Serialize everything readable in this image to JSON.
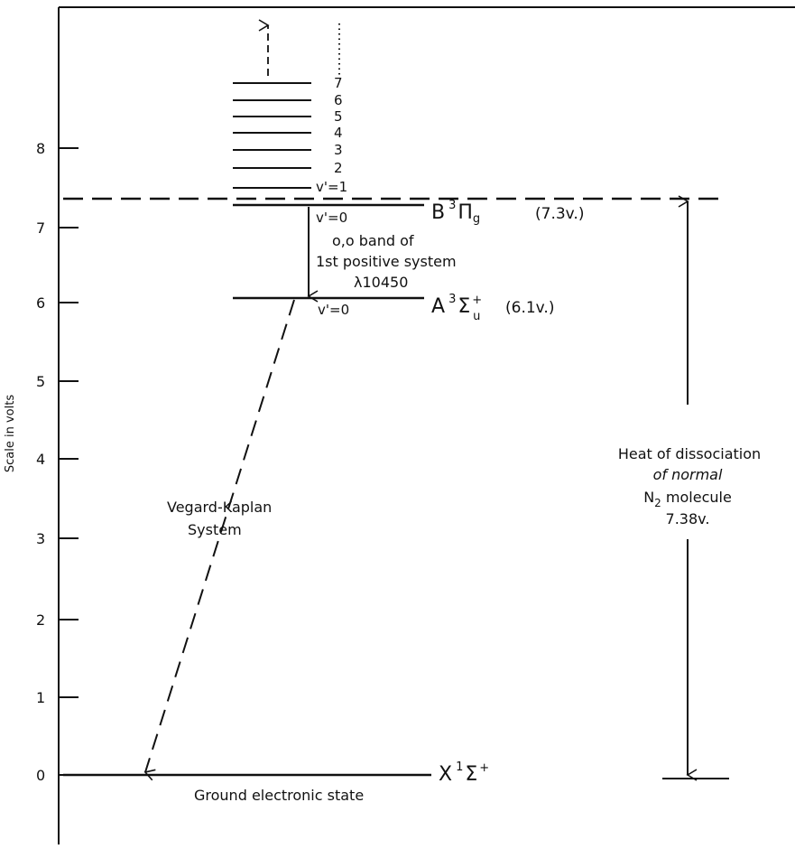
{
  "diagram": {
    "axis": {
      "title": "Scale in volts",
      "ticks": [
        "0",
        "1",
        "2",
        "3",
        "4",
        "5",
        "6",
        "7",
        "8"
      ]
    },
    "levels": {
      "B": {
        "symbol_main": "B",
        "symbol_sup": "3",
        "symbol_letter": "Π",
        "symbol_sub": "g",
        "energy": "(7.3v.)",
        "v_label": "v'=0"
      },
      "A": {
        "symbol_main": "A",
        "symbol_sup": "3",
        "symbol_letter": "Σ",
        "symbol_sub": "u",
        "symbol_plus": "+",
        "energy": "(6.1v.)",
        "v_label": "v'=0"
      },
      "X": {
        "symbol_main": "X",
        "symbol_sup": "1",
        "symbol_letter": "Σ",
        "symbol_plus": "+",
        "caption": "Ground electronic state"
      }
    },
    "vibrational_levels": [
      "v'=1",
      "2",
      "3",
      "4",
      "5",
      "6",
      "7"
    ],
    "transition_label": {
      "line1": "o,o band of",
      "line2": "1st positive system",
      "line3": "λ10450"
    },
    "vegard_kaplan": {
      "line1": "Vegard-Kaplan",
      "line2": "System"
    },
    "dissociation": {
      "line1": "Heat of dissociation",
      "line2": "of normal",
      "line3_main": "N",
      "line3_sub": "2",
      "line3_rest": " molecule",
      "line4": "7.38v."
    }
  }
}
